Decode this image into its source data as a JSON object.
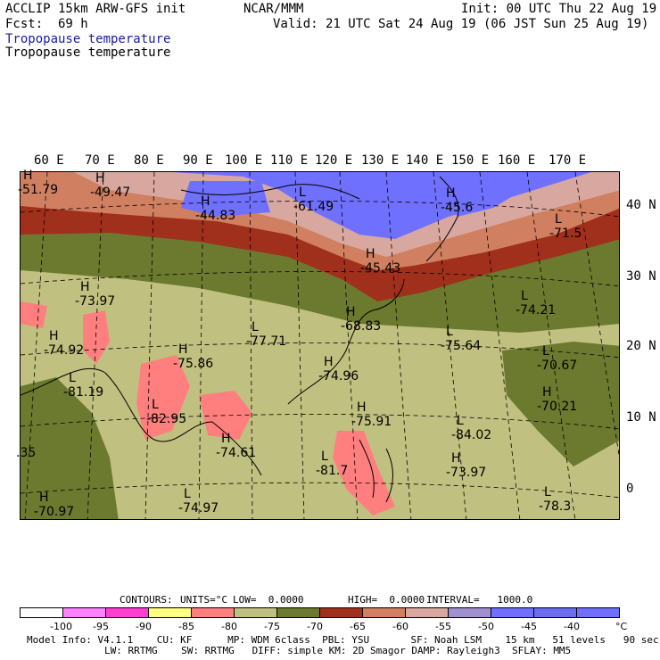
{
  "header": {
    "model": "ACCLIP 15km ARW-GFS init",
    "org": "NCAR/MMM",
    "init": "Init: 00 UTC Thu 22 Aug 19",
    "fcst_label": "Fcst:",
    "fcst_value": "69 h",
    "valid": "Valid: 21 UTC Sat 24 Aug 19 (06 JST Sun 25 Aug 19)",
    "title_colored": "Tropopause temperature",
    "title_black": "Tropopause temperature"
  },
  "map": {
    "longitude_labels": [
      "60 E",
      "70 E",
      "80 E",
      "90 E",
      "100 E",
      "110 E",
      "120 E",
      "130 E",
      "140 E",
      "150 E",
      "160 E",
      "170 E"
    ],
    "latitude_labels": [
      "40 N",
      "30 N",
      "20 N",
      "10 N",
      "0"
    ],
    "markers": [
      {
        "type": "H",
        "value": "-51.79"
      },
      {
        "type": "H",
        "value": "-49.47"
      },
      {
        "type": "H",
        "value": "-44.83"
      },
      {
        "type": "L",
        "value": "-61.49"
      },
      {
        "type": "H",
        "value": "-45.6"
      },
      {
        "type": "L",
        "value": "-71.5"
      },
      {
        "type": "H",
        "value": "-45.43"
      },
      {
        "type": "H",
        "value": "-73.97"
      },
      {
        "type": "L",
        "value": "-74.21"
      },
      {
        "type": "H",
        "value": "-74.92"
      },
      {
        "type": "L",
        "value": "-77.71"
      },
      {
        "type": "H",
        "value": "-68.83"
      },
      {
        "type": "L",
        "value": "-75.64"
      },
      {
        "type": "H",
        "value": "-75.86"
      },
      {
        "type": "H",
        "value": "-74.96"
      },
      {
        "type": "L",
        "value": "-70.67"
      },
      {
        "type": "L",
        "value": "-81.19"
      },
      {
        "type": "H",
        "value": "-70.21"
      },
      {
        "type": "L",
        "value": "-82.95"
      },
      {
        "type": "H",
        "value": "-75.91"
      },
      {
        "type": "L",
        "value": "-84.02"
      },
      {
        "type": "H",
        "value": "-74.61"
      },
      {
        "type": "H",
        "value": "-73.97"
      },
      {
        "type": "L",
        "value": "-81.7"
      },
      {
        "type": "H",
        "value": "-70.97"
      },
      {
        "type": "L",
        "value": "-74.97"
      },
      {
        "type": "L",
        "value": "-78.3"
      },
      {
        "type": "",
        "value": ".35"
      }
    ]
  },
  "contours": {
    "label": "CONTOURS:",
    "units": "UNITS=°C",
    "low": "LOW=  0.0000",
    "high": "HIGH=  0.0000",
    "interval": "INTERVAL=   1000.0"
  },
  "colorbar": {
    "colors": [
      "#ffffff",
      "#ff80ff",
      "#ff40d0",
      "#ffff80",
      "#ff7f7f",
      "#c0c080",
      "#6b7a2e",
      "#a0301c",
      "#d08060",
      "#d8a8a0",
      "#a090d0",
      "#7070ff",
      "#6c6cf0",
      "#7070ff"
    ],
    "labels": [
      "-100",
      "-95",
      "-90",
      "-85",
      "-80",
      "-75",
      "-70",
      "-65",
      "-60",
      "-55",
      "-50",
      "-45",
      "-40"
    ],
    "unit": "°C"
  },
  "footer": {
    "line1": "Model Info: V4.1.1    CU: KF      MP: WDM 6class  PBL: YSU       SF: Noah LSM    15 km   51 levels   90 sec",
    "line2": "LW: RRTMG    SW: RRTMG   DIFF: simple KM: 2D Smagor DAMP: Rayleigh3  SFLAY: MM5"
  }
}
